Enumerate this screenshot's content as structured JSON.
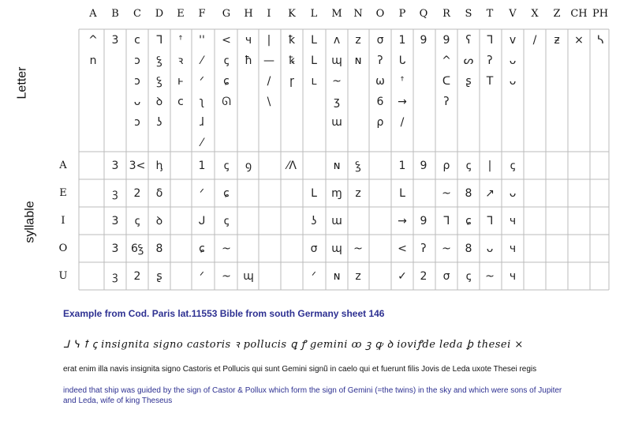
{
  "columns": [
    "A",
    "B",
    "C",
    "D",
    "E",
    "F",
    "G",
    "H",
    "I",
    "K",
    "L",
    "M",
    "N",
    "O",
    "P",
    "Q",
    "R",
    "S",
    "T",
    "V",
    "X",
    "Z",
    "CH",
    "PH"
  ],
  "row_labels": [
    "A",
    "E",
    "I",
    "O",
    "U"
  ],
  "side_labels": {
    "letter": "Letter",
    "syllable": "syllable"
  },
  "letter_glyphs": {
    "A": [
      "^",
      "n"
    ],
    "B": [
      "3"
    ],
    "C": [
      "c",
      "ↄ",
      "ↄ",
      "ᴗ",
      "ɔ"
    ],
    "D": [
      "ᒣ",
      "ꝣ",
      "ꝣ",
      "ꝺ",
      "ʖ"
    ],
    "E": [
      "ꜛ",
      "ꝛ",
      "ⱶ",
      "ᴄ"
    ],
    "F": [
      "ꞌ'",
      "⁄",
      "ᐟ",
      "ʅ",
      "ɺ",
      "⁄"
    ],
    "G": [
      "<",
      "ꞔ",
      "ɕ",
      "ᘏ"
    ],
    "H": [
      "ч",
      "ħ"
    ],
    "I": [
      "|",
      "—",
      "/",
      "\\"
    ],
    "K": [
      "ꝁ",
      "ꝅ",
      "ɼ"
    ],
    "L": [
      "L",
      "ᒪ",
      "ʟ"
    ],
    "M": [
      "ᴧ",
      "ɰ",
      "~",
      "ʒ",
      "ɯ"
    ],
    "N": [
      "z",
      "ɴ"
    ],
    "O": [
      "σ",
      "ʔ",
      "ω",
      "6",
      "ρ"
    ],
    "P": [
      "1",
      "ᒐ",
      "ꜛ",
      "→",
      "/"
    ],
    "Q": [
      "9"
    ],
    "R": [
      "9",
      "^",
      "ᑕ",
      "ʔ"
    ],
    "S": [
      "ʕ",
      "ᔕ",
      "ʂ"
    ],
    "T": [
      "ᒣ",
      "ʔ",
      "T"
    ],
    "V": [
      "v",
      "ᴗ",
      "ᴗ"
    ],
    "X": [
      "/"
    ],
    "Z": [
      "ƶ"
    ],
    "CH": [
      "×"
    ],
    "PH": [
      "ᓴ"
    ]
  },
  "syllable_glyphs": [
    {
      "row": "A",
      "cells": {
        "B": "3",
        "C": "3<",
        "D": "ꞕ",
        "F": "1",
        "G": "ꞔ",
        "H": "ꝯ",
        "K": "⁄ᐱ",
        "M": "ɴ",
        "N": "ꝣ",
        "P": "1",
        "Q": "9",
        "R": "ρ",
        "S": "ꞔ",
        "T": "|",
        "V": "ꞔ"
      }
    },
    {
      "row": "E",
      "cells": {
        "B": "ꝫ",
        "C": "2",
        "D": "δ",
        "F": "ᐟ",
        "G": "ɕ",
        "L": "ᒪ",
        "M": "ɱ",
        "N": "z",
        "P": "ᒪ",
        "R": "~",
        "S": "8",
        "T": "↗",
        "V": "ᴗ"
      }
    },
    {
      "row": "I",
      "cells": {
        "B": "3",
        "C": "ꞔ",
        "D": "ꝺ",
        "F": "ᒍ",
        "G": "ꞔ",
        "L": "ʖ",
        "M": "ɯ",
        "P": "→",
        "Q": "9",
        "R": "ᒣ",
        "S": "ɕ",
        "T": "ᒣ",
        "V": "ч"
      }
    },
    {
      "row": "O",
      "cells": {
        "B": "3",
        "C": "6ꝣ",
        "D": "8",
        "F": "ɕ",
        "G": "~",
        "L": "σ",
        "M": "ɰ",
        "N": "~",
        "P": "<",
        "Q": "ʔ",
        "R": "~",
        "S": "8",
        "T": "ᴗ",
        "V": "ч"
      }
    },
    {
      "row": "U",
      "cells": {
        "B": "ꝫ",
        "C": "2",
        "D": "ʂ",
        "F": "ᐟ",
        "G": "~",
        "H": "ɰ",
        "L": "ᐟ",
        "M": "ɴ",
        "N": "z",
        "P": "✓",
        "Q": "2",
        "R": "σ",
        "S": "ꞔ",
        "T": "~",
        "V": "ч"
      }
    }
  ],
  "example": {
    "caption": "Example from Cod. Paris lat.11553 Bible from south Germany sheet 146",
    "shorthand_line": "ᒧ ᓭ ꝉ ꞔ insignita signo castoris ꝛ pollucis ꝗ ꝭ gemini ꝏ ꝫ ꝙ ꝺ ioviꝭde leda ꝧ thesei ×",
    "latin": "erat enim illa navis  insignita signo  Castoris et Pollucis qui sunt Gemini signũ in  caelo qui et fuerunt filis Jovis de Leda uxote Thesei regis",
    "english": "indeed that ship was guided by the sign of Castor & Pollux which form the sign of Gemini (=the twins) in the sky and which were sons of Jupiter and Leda, wife of king Theseus"
  }
}
